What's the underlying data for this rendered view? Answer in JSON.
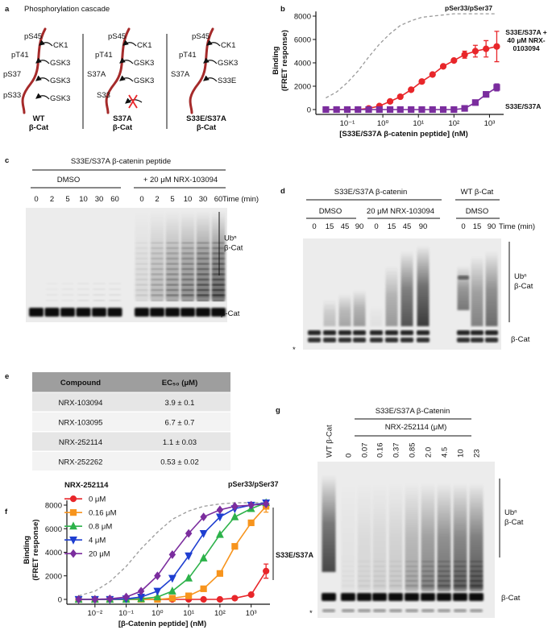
{
  "panel_labels": [
    "a",
    "b",
    "c",
    "d",
    "e",
    "f",
    "g"
  ],
  "panel_a": {
    "title": "Phosphorylation cascade",
    "diagrams": [
      {
        "labels": [
          "pS45",
          "CK1",
          "pT41",
          "GSK3",
          "pS37",
          "GSK3",
          "pS33",
          "GSK3"
        ],
        "colors": [
          "#000000",
          "#000000",
          "#000000",
          "#000000",
          "#000000",
          "#000000",
          "#000000",
          "#000000"
        ],
        "name": [
          "WT",
          "β-Cat"
        ]
      },
      {
        "labels": [
          "pS45",
          "CK1",
          "pT41",
          "GSK3",
          "S37A",
          "GSK3",
          "S33"
        ],
        "colors": [
          "#000000",
          "#000000",
          "#000000",
          "#000000",
          "#e8262a",
          "#000000",
          "#2a8bd0"
        ],
        "name": [
          "S37A",
          "β-Cat"
        ]
      },
      {
        "labels": [
          "pS45",
          "CK1",
          "pT41",
          "GSK3",
          "S37A",
          "S33E"
        ],
        "colors": [
          "#000000",
          "#000000",
          "#000000",
          "#000000",
          "#e8262a",
          "#2a8bd0"
        ],
        "name": [
          "S33E/S37A",
          "β-Cat"
        ]
      }
    ]
  },
  "chart_data": [
    {
      "type": "line",
      "xlabel": "[S33E/S37A β-catenin peptide] (nM)",
      "ylabel": [
        "Binding",
        "(FRET response)"
      ],
      "xscale": "log",
      "xlim": [
        0.017,
        2500
      ],
      "ylim": [
        0,
        8400
      ],
      "xticks": [
        {
          "value": 0.1,
          "label": "10⁻¹"
        },
        {
          "value": 1,
          "label": "10⁰"
        },
        {
          "value": 10,
          "label": "10¹"
        },
        {
          "value": 100,
          "label": "10²"
        },
        {
          "value": 1000,
          "label": "10³"
        }
      ],
      "yticks": [
        0,
        2000,
        4000,
        6000,
        8000
      ],
      "x": [
        0.025,
        0.05,
        0.1,
        0.2,
        0.4,
        0.8,
        1.6,
        3.1,
        6.25,
        12.5,
        25,
        50,
        100,
        200,
        400,
        800,
        1600
      ],
      "series": [
        {
          "name": "pSer33/pSer37",
          "color": "#9a9a9a",
          "dash": true,
          "values": [
            1000,
            1500,
            2300,
            3300,
            4500,
            5600,
            6500,
            7200,
            7600,
            7900,
            8000,
            8100,
            8200,
            8200,
            8200,
            8200,
            8200
          ]
        },
        {
          "name": "S33E/S37A + 40 μM NRX-0103094",
          "color": "#e8262a",
          "marker": "circle",
          "values": [
            0,
            0,
            0,
            0,
            100,
            300,
            700,
            1100,
            1700,
            2400,
            3000,
            3700,
            4200,
            4700,
            5000,
            5200,
            5400
          ],
          "errors": [
            null,
            null,
            null,
            null,
            null,
            null,
            null,
            null,
            null,
            null,
            null,
            null,
            null,
            300,
            500,
            700,
            1300
          ]
        },
        {
          "name": "S33E/S37A",
          "color": "#7b2d9e",
          "marker": "square",
          "values": [
            0,
            0,
            0,
            0,
            0,
            0,
            0,
            0,
            0,
            0,
            0,
            0,
            0,
            100,
            600,
            1300,
            1900
          ],
          "errors": [
            null,
            null,
            null,
            null,
            null,
            null,
            null,
            null,
            null,
            null,
            null,
            null,
            null,
            null,
            null,
            null,
            300
          ]
        }
      ]
    },
    {
      "type": "line",
      "xlabel": "[β-Catenin peptide] (nM)",
      "ylabel": [
        "Binding",
        "(FRET response)"
      ],
      "xscale": "log",
      "xlim": [
        0.0017,
        4000
      ],
      "ylim": [
        0,
        8400
      ],
      "xticks": [
        {
          "value": 0.01,
          "label": "10⁻²"
        },
        {
          "value": 0.1,
          "label": "10⁻¹"
        },
        {
          "value": 1,
          "label": "10⁰"
        },
        {
          "value": 10,
          "label": "10¹"
        },
        {
          "value": 100,
          "label": "10²"
        },
        {
          "value": 1000,
          "label": "10³"
        }
      ],
      "yticks": [
        0,
        2000,
        4000,
        6000,
        8000
      ],
      "legend": "upper left",
      "legend_title": "NRX-252114",
      "annotations": [
        "S33E/S37A"
      ],
      "x": [
        0.003,
        0.01,
        0.03,
        0.1,
        0.3,
        1,
        3,
        10,
        30,
        100,
        300,
        1000,
        3000
      ],
      "series": [
        {
          "name": "pSer33/pSer37",
          "color": "#9a9a9a",
          "dash": true,
          "values": [
            300,
            700,
            1500,
            2800,
            4300,
            5700,
            6800,
            7500,
            7900,
            8100,
            8200,
            8200,
            8200
          ]
        },
        {
          "name": "0 μM",
          "color": "#e8262a",
          "marker": "circle",
          "values": [
            0,
            0,
            0,
            0,
            0,
            0,
            0,
            0,
            0,
            0,
            100,
            400,
            2400
          ],
          "errors": [
            null,
            null,
            null,
            null,
            null,
            null,
            null,
            null,
            null,
            null,
            null,
            null,
            600
          ]
        },
        {
          "name": "0.16 μM",
          "color": "#f7941d",
          "marker": "square",
          "values": [
            0,
            0,
            0,
            0,
            0,
            0,
            100,
            300,
            900,
            2200,
            4500,
            6500,
            7900
          ],
          "errors": [
            null,
            null,
            null,
            null,
            null,
            null,
            null,
            null,
            null,
            null,
            null,
            null,
            500
          ]
        },
        {
          "name": "0.8 μM",
          "color": "#2db24a",
          "marker": "triangle",
          "values": [
            0,
            0,
            0,
            0,
            50,
            200,
            700,
            1800,
            3500,
            5500,
            7000,
            7700,
            8200
          ]
        },
        {
          "name": "4 μM",
          "color": "#1f3fd1",
          "marker": "triangle-down",
          "values": [
            0,
            0,
            0,
            50,
            200,
            700,
            1800,
            3700,
            5600,
            7000,
            7700,
            8000,
            8200
          ]
        },
        {
          "name": "20 μM",
          "color": "#7b2d9e",
          "marker": "diamond",
          "values": [
            0,
            0,
            50,
            200,
            700,
            2000,
            3800,
            5600,
            7000,
            7600,
            7900,
            8000,
            8100
          ]
        }
      ]
    }
  ],
  "panel_c": {
    "title": "S33E/S37A β-catenin peptide",
    "groups": [
      "DMSO",
      "+ 20 μM NRX-103094"
    ],
    "lanes": [
      0,
      2,
      5,
      10,
      30,
      60,
      0,
      2,
      5,
      10,
      30,
      60
    ],
    "time_label": "Time (min)",
    "ub_label": [
      "Ubⁿ",
      "β-Cat"
    ],
    "band_label": "β-Cat"
  },
  "panel_d": {
    "headers": [
      "S33E/S37A β-catenin",
      "WT β-Cat"
    ],
    "groups": [
      "DMSO",
      "20 μM NRX-103094",
      "DMSO"
    ],
    "lanes": [
      0,
      15,
      45,
      90,
      0,
      15,
      45,
      90,
      0,
      15,
      90
    ],
    "time_label": "Time (min)",
    "ub_label": [
      "Ubⁿ",
      "β-Cat"
    ],
    "band_label": "β-Cat",
    "marker": "*"
  },
  "panel_e": {
    "table": {
      "header": [
        "Compound",
        "EC₅₀ (μM)"
      ],
      "rows": [
        [
          "NRX-103094",
          "3.9 ± 0.1"
        ],
        [
          "NRX-103095",
          "6.7 ± 0.7"
        ],
        [
          "NRX-252114",
          "1.1 ± 0.03"
        ],
        [
          "NRX-252262",
          "0.53 ± 0.02"
        ]
      ]
    }
  },
  "panel_g": {
    "title": "S33E/S37A β-Catenin",
    "subtitle": "NRX-252114 (μM)",
    "lanes": [
      "WT β-Cat",
      "0",
      "0.07",
      "0.16",
      "0.37",
      "0.85",
      "2.0",
      "4.5",
      "10",
      "23"
    ],
    "ub_label": [
      "Ubⁿ",
      "β-Cat"
    ],
    "band_label": "β-Cat",
    "marker": "*"
  }
}
